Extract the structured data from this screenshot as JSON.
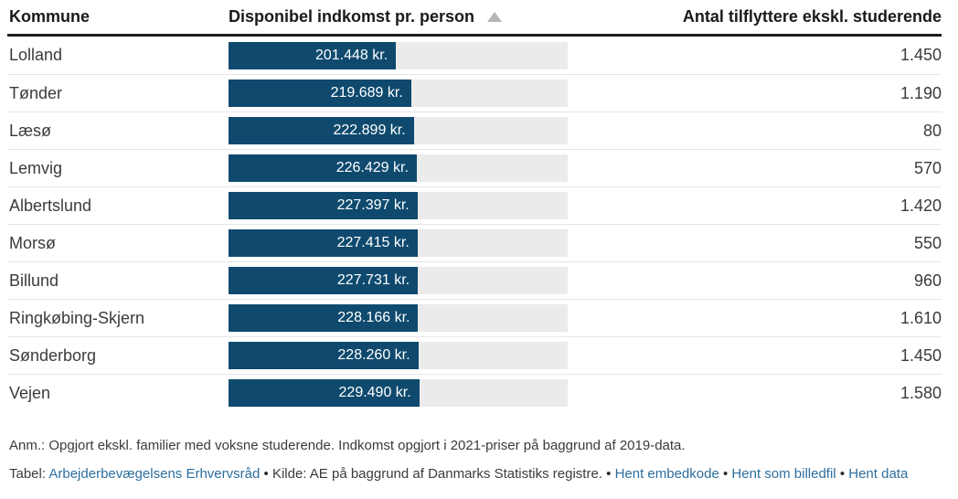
{
  "header": {
    "col_kommune": "Kommune",
    "col_income": "Disponibel indkomst pr. person",
    "sort_icon": "ascending",
    "col_movers": "Antal tilflyttere ekskl. studerende"
  },
  "table": {
    "rows": [
      {
        "kommune": "Lolland",
        "income_label": "201.448 kr.",
        "income_value": 201448,
        "movers": "1.450"
      },
      {
        "kommune": "Tønder",
        "income_label": "219.689 kr.",
        "income_value": 219689,
        "movers": "1.190"
      },
      {
        "kommune": "Læsø",
        "income_label": "222.899 kr.",
        "income_value": 222899,
        "movers": "80"
      },
      {
        "kommune": "Lemvig",
        "income_label": "226.429 kr.",
        "income_value": 226429,
        "movers": "570"
      },
      {
        "kommune": "Albertslund",
        "income_label": "227.397 kr.",
        "income_value": 227397,
        "movers": "1.420"
      },
      {
        "kommune": "Morsø",
        "income_label": "227.415 kr.",
        "income_value": 227415,
        "movers": "550"
      },
      {
        "kommune": "Billund",
        "income_label": "227.731 kr.",
        "income_value": 227731,
        "movers": "960"
      },
      {
        "kommune": "Ringkøbing-Skjern",
        "income_label": "228.166 kr.",
        "income_value": 228166,
        "movers": "1.610"
      },
      {
        "kommune": "Sønderborg",
        "income_label": "228.260 kr.",
        "income_value": 228260,
        "movers": "1.450"
      },
      {
        "kommune": "Vejen",
        "income_label": "229.490 kr.",
        "income_value": 229490,
        "movers": "1.580"
      }
    ]
  },
  "chart_data": {
    "type": "table",
    "title": "",
    "columns": [
      "Kommune",
      "Disponibel indkomst pr. person",
      "Antal tilflyttere ekskl. studerende"
    ],
    "categories": [
      "Lolland",
      "Tønder",
      "Læsø",
      "Lemvig",
      "Albertslund",
      "Morsø",
      "Billund",
      "Ringkøbing-Skjern",
      "Sønderborg",
      "Vejen"
    ],
    "series": [
      {
        "name": "Disponibel indkomst pr. person (kr.)",
        "values": [
          201448,
          219689,
          222899,
          226429,
          227397,
          227415,
          227731,
          228166,
          228260,
          229490
        ]
      },
      {
        "name": "Antal tilflyttere ekskl. studerende",
        "values": [
          1450,
          1190,
          80,
          570,
          1420,
          550,
          960,
          1610,
          1450,
          1580
        ]
      }
    ],
    "bar_column": {
      "column": "Disponibel indkomst pr. person",
      "style": "bar-in-cell",
      "scale_max": 408000,
      "sort": "ascending"
    }
  },
  "footer": {
    "note": "Anm.: Opgjort ekskl. familier med voksne studerende. Indkomst opgjort i 2021-priser på baggrund af 2019-data.",
    "table_prefix": "Tabel:",
    "table_link": "Arbejderbevægelsens Erhvervsråd",
    "separator": "•",
    "source_text": "Kilde: AE på baggrund af Danmarks Statistiks registre.",
    "links": [
      "Hent embedkode",
      "Hent som billedfil",
      "Hent data"
    ]
  },
  "colors": {
    "bar": "#0f4a6e",
    "bar_track": "#ebebeb",
    "link": "#2c6e9e",
    "header_text": "#1a1a1a",
    "body_text": "#3b3b3b",
    "sort_arrow": "#b5b5b5",
    "header_rule": "#1d1d1d",
    "row_divider": "#e6e6e6"
  }
}
